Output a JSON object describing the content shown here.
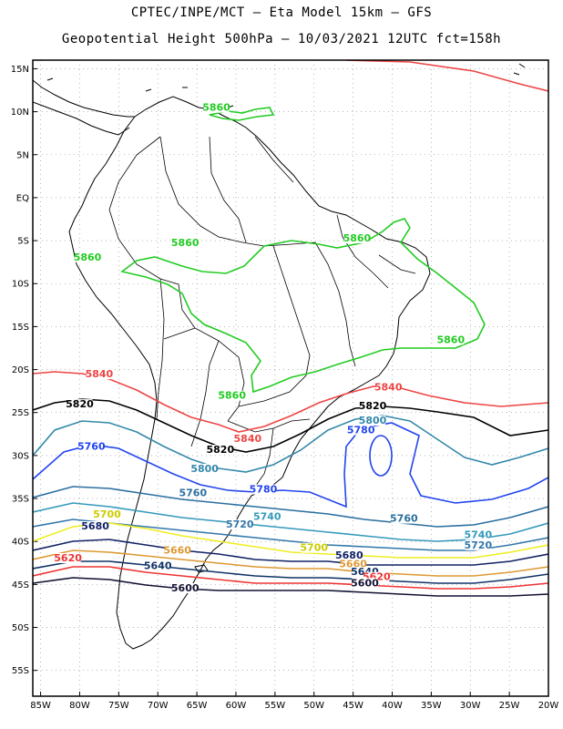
{
  "header": {
    "line1": "CPTEC/INPE/MCT –  Eta Model 15km – GFS",
    "line2": "Geopotential Height 500hPa – 10/03/2021 12UTC fct=158h"
  },
  "map": {
    "lat_ticks": [
      "15N",
      "10N",
      "5N",
      "EQ",
      "5S",
      "10S",
      "15S",
      "20S",
      "25S",
      "30S",
      "35S",
      "40S",
      "45S",
      "50S",
      "55S"
    ],
    "lon_ticks": [
      "85W",
      "80W",
      "75W",
      "70W",
      "65W",
      "60W",
      "55W",
      "50W",
      "45W",
      "40W",
      "35W",
      "30W",
      "25W",
      "20W"
    ],
    "lat_range": [
      -58,
      16
    ],
    "lon_range": [
      -86,
      -20
    ],
    "grid": true
  },
  "contours": [
    {
      "level": "5860",
      "color": "#22cc22"
    },
    {
      "level": "5840",
      "color": "#ee4444"
    },
    {
      "level": "5820",
      "color": "#000000"
    },
    {
      "level": "5800",
      "color": "#3388aa"
    },
    {
      "level": "5780",
      "color": "#2244ee"
    },
    {
      "level": "5760",
      "color": "#2a6fa0"
    },
    {
      "level": "5740",
      "color": "#3399bb"
    },
    {
      "level": "5720",
      "color": "#3377aa"
    },
    {
      "level": "5700",
      "color": "#eeee22"
    },
    {
      "level": "5680",
      "color": "#112266"
    },
    {
      "level": "5660",
      "color": "#dd9933"
    },
    {
      "level": "5640",
      "color": "#113366"
    },
    {
      "level": "5620",
      "color": "#ee3333"
    },
    {
      "level": "5600",
      "color": "#111133"
    }
  ],
  "contour_labels": [
    {
      "text": "5860",
      "color": "#22cc22",
      "lon": -62.5,
      "lat": 10.2
    },
    {
      "text": "5860",
      "color": "#22cc22",
      "lon": -66.5,
      "lat": -5.5
    },
    {
      "text": "5860",
      "color": "#22cc22",
      "lon": -79,
      "lat": -7.2
    },
    {
      "text": "5860",
      "color": "#22cc22",
      "lon": -44.5,
      "lat": -5.0
    },
    {
      "text": "5860",
      "color": "#22cc22",
      "lon": -32.5,
      "lat": -16.8
    },
    {
      "text": "5860",
      "color": "#22cc22",
      "lon": -60.5,
      "lat": -23.3
    },
    {
      "text": "5840",
      "color": "#ee4444",
      "lon": -77.5,
      "lat": -20.8
    },
    {
      "text": "5840",
      "color": "#ee4444",
      "lon": -40.5,
      "lat": -22.3
    },
    {
      "text": "5840",
      "color": "#ee4444",
      "lon": -58.5,
      "lat": -28.3
    },
    {
      "text": "5820",
      "color": "#000000",
      "lon": -80,
      "lat": -24.3
    },
    {
      "text": "5820",
      "color": "#000000",
      "lon": -42.5,
      "lat": -24.5
    },
    {
      "text": "5820",
      "color": "#000000",
      "lon": -62,
      "lat": -29.6
    },
    {
      "text": "5800",
      "color": "#3388aa",
      "lon": -42.5,
      "lat": -26.2
    },
    {
      "text": "5800",
      "color": "#3388aa",
      "lon": -64,
      "lat": -31.8
    },
    {
      "text": "5780",
      "color": "#2244ee",
      "lon": -44,
      "lat": -27.3
    },
    {
      "text": "5780",
      "color": "#2244ee",
      "lon": -56.5,
      "lat": -34.2
    },
    {
      "text": "5760",
      "color": "#2244ee",
      "lon": -78.5,
      "lat": -29.2
    },
    {
      "text": "5760",
      "color": "#2a6fa0",
      "lon": -65.5,
      "lat": -34.6
    },
    {
      "text": "5760",
      "color": "#2a6fa0",
      "lon": -38.5,
      "lat": -37.6
    },
    {
      "text": "5740",
      "color": "#3399bb",
      "lon": -56,
      "lat": -37.4
    },
    {
      "text": "5740",
      "color": "#3399bb",
      "lon": -29,
      "lat": -39.5
    },
    {
      "text": "5720",
      "color": "#3377aa",
      "lon": -59.5,
      "lat": -38.3
    },
    {
      "text": "5720",
      "color": "#3377aa",
      "lon": -29,
      "lat": -40.7
    },
    {
      "text": "5700",
      "color": "#cccc00",
      "lon": -76.5,
      "lat": -37.1
    },
    {
      "text": "5700",
      "color": "#cccc00",
      "lon": -50,
      "lat": -41.0
    },
    {
      "text": "5680",
      "color": "#112266",
      "lon": -78,
      "lat": -38.5
    },
    {
      "text": "5680",
      "color": "#112266",
      "lon": -45.5,
      "lat": -41.9
    },
    {
      "text": "5660",
      "color": "#dd9933",
      "lon": -67.5,
      "lat": -41.3
    },
    {
      "text": "5660",
      "color": "#dd9933",
      "lon": -45,
      "lat": -42.9
    },
    {
      "text": "5640",
      "color": "#113366",
      "lon": -70,
      "lat": -43.1
    },
    {
      "text": "5640",
      "color": "#113366",
      "lon": -43.5,
      "lat": -43.8
    },
    {
      "text": "5620",
      "color": "#ee3333",
      "lon": -81.5,
      "lat": -42.2
    },
    {
      "text": "5620",
      "color": "#ee3333",
      "lon": -42,
      "lat": -44.4
    },
    {
      "text": "5600",
      "color": "#111133",
      "lon": -66.5,
      "lat": -45.7
    },
    {
      "text": "5600",
      "color": "#111133",
      "lon": -43.5,
      "lat": -45.1
    }
  ]
}
